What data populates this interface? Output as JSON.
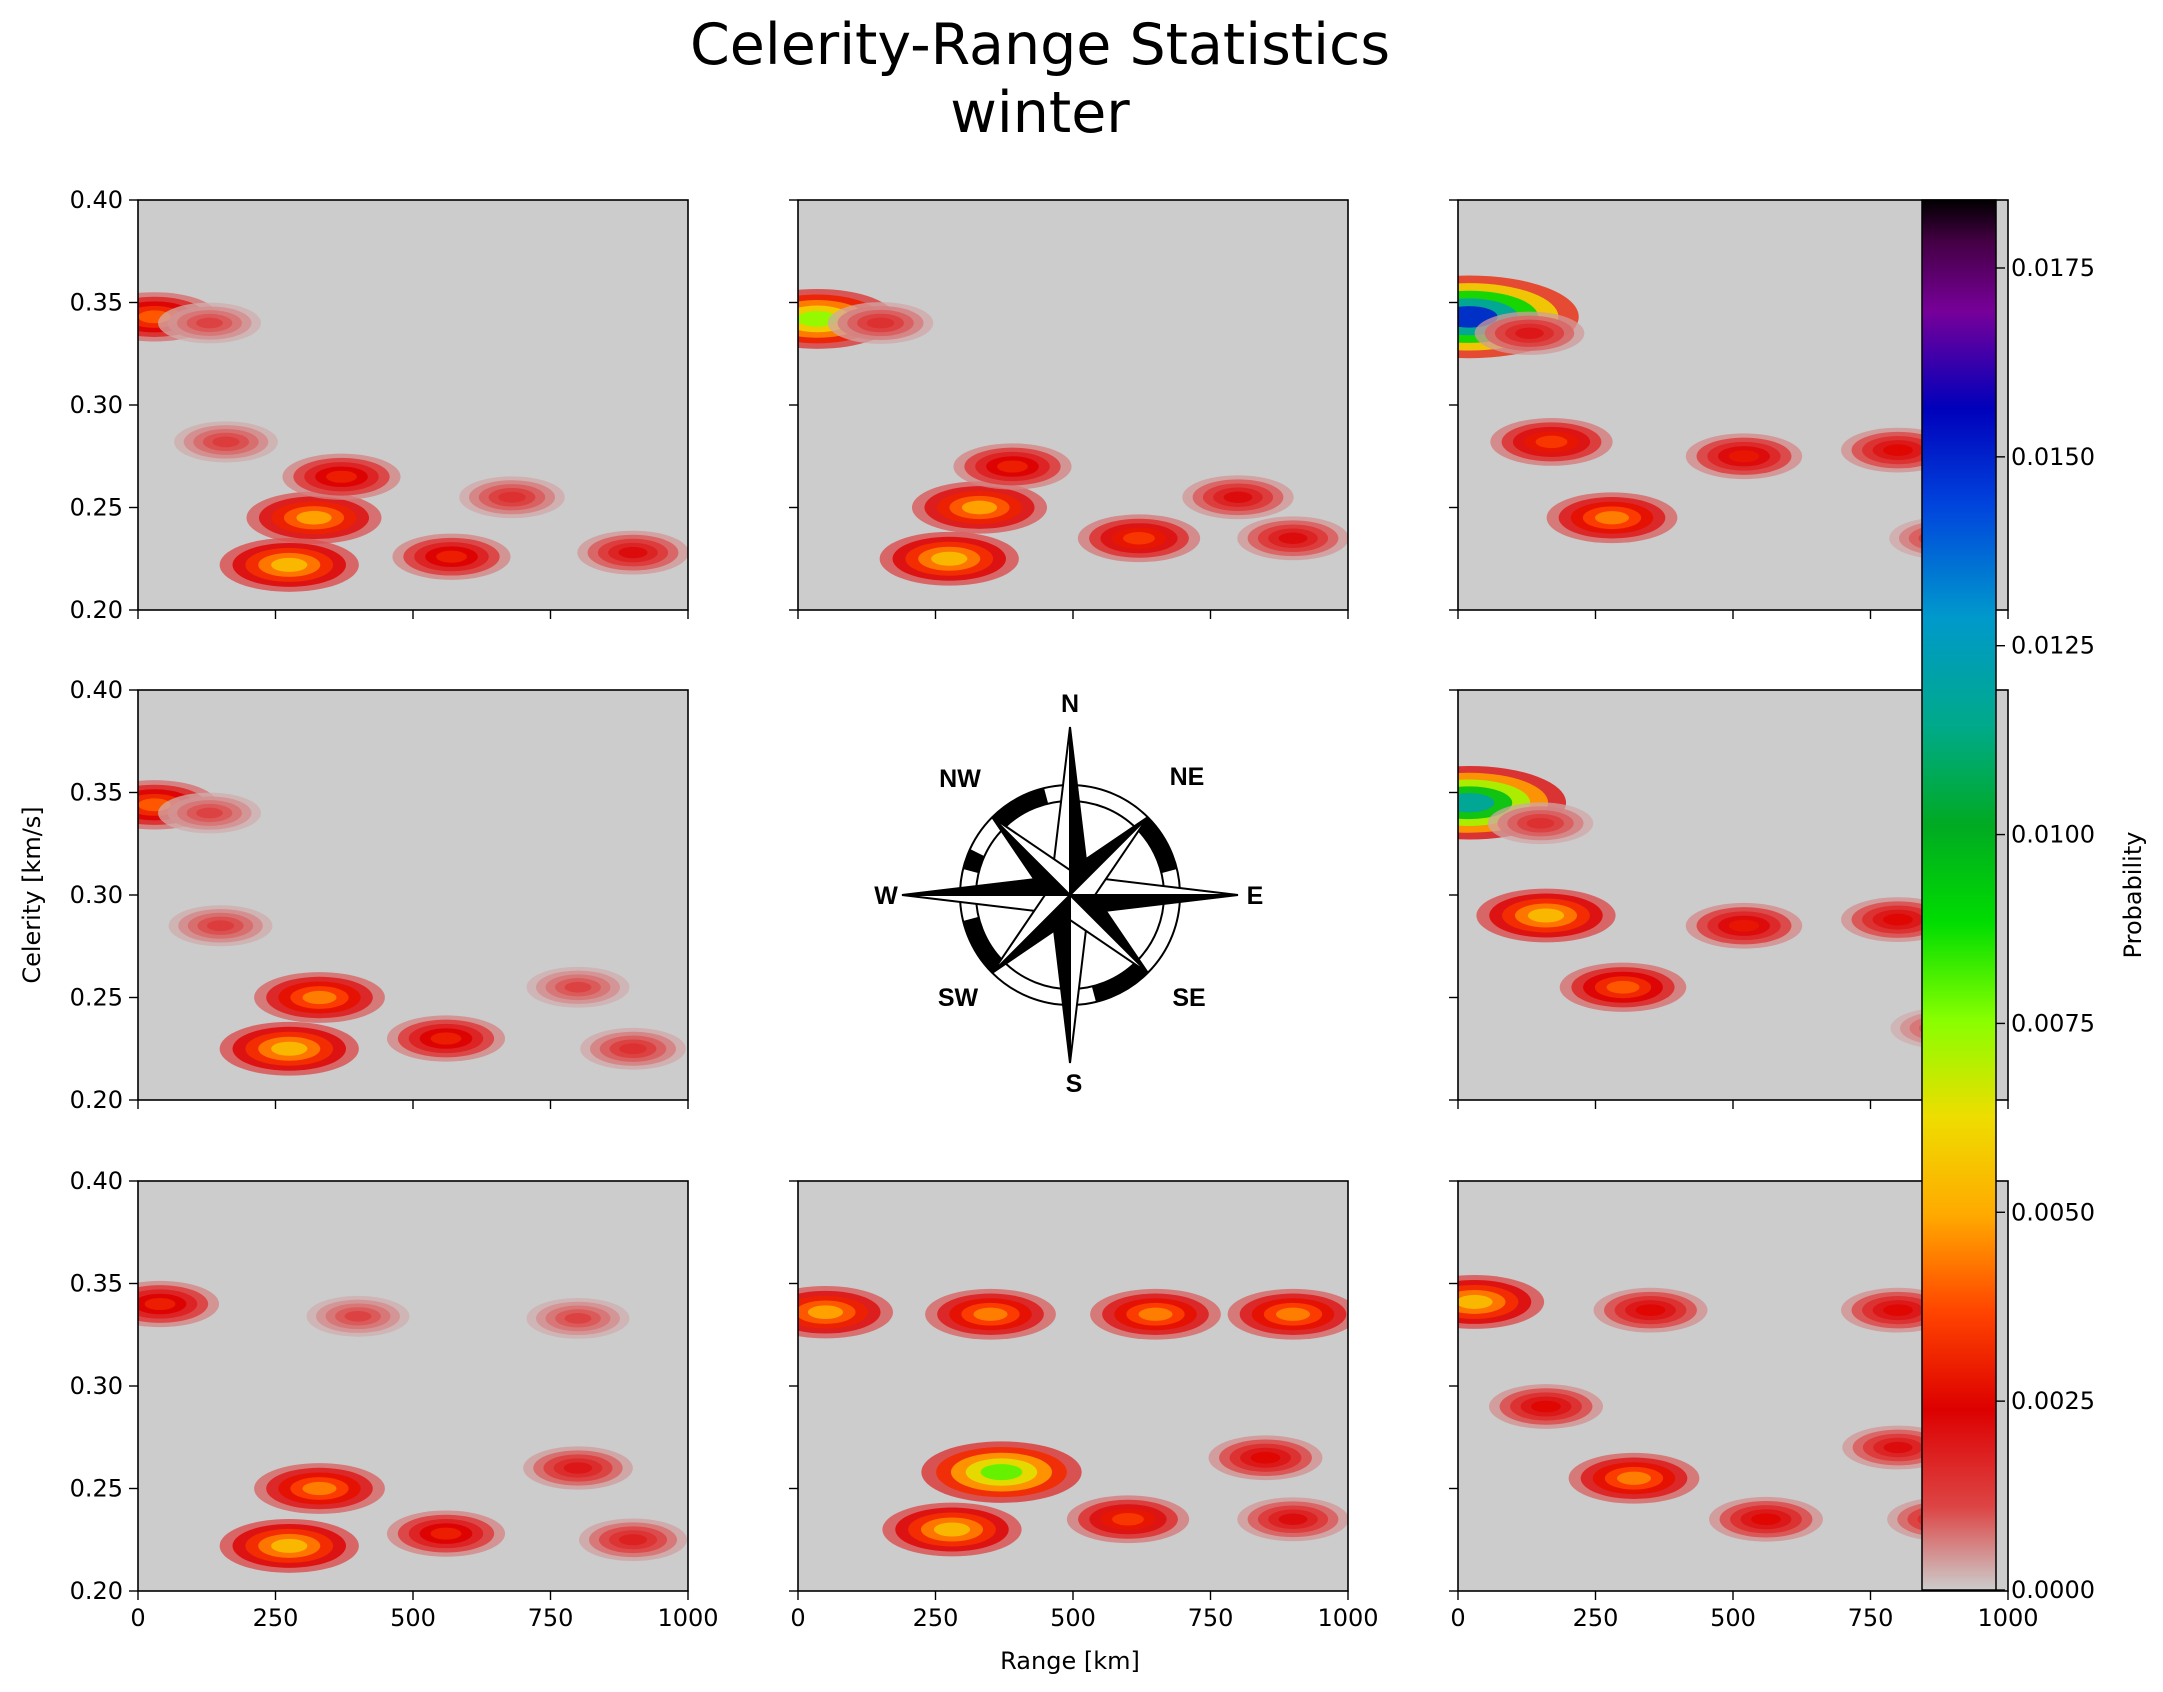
{
  "chart_data": {
    "type": "heatmap",
    "title": "Celerity-Range Statistics",
    "subtitle": "winter",
    "xlabel": "Range [km]",
    "ylabel": "Celerity [km/s]",
    "xlim": [
      0,
      1000
    ],
    "ylim": [
      0.2,
      0.4
    ],
    "xticks": [
      "0",
      "250",
      "500",
      "750",
      "1000"
    ],
    "yticks": [
      "0.20",
      "0.25",
      "0.30",
      "0.35",
      "0.40"
    ],
    "colorbar": {
      "label": "Probability",
      "range": [
        0,
        0.0184
      ],
      "ticks": [
        "0.0000",
        "0.0025",
        "0.0050",
        "0.0075",
        "0.0100",
        "0.0125",
        "0.0150",
        "0.0175"
      ],
      "tick_values": [
        0,
        0.0025,
        0.005,
        0.0075,
        0.01,
        0.0125,
        0.015,
        0.0175
      ]
    },
    "compass": {
      "labels": [
        "N",
        "NE",
        "E",
        "SE",
        "S",
        "SW",
        "W",
        "NW"
      ]
    },
    "panels": [
      {
        "direction": "NW",
        "blobs": [
          {
            "range": 30,
            "celerity": 0.343,
            "peak": 0.004
          },
          {
            "range": 130,
            "celerity": 0.34,
            "peak": 0.0012
          },
          {
            "range": 160,
            "celerity": 0.282,
            "peak": 0.0013
          },
          {
            "range": 275,
            "celerity": 0.222,
            "peak": 0.0055
          },
          {
            "range": 320,
            "celerity": 0.245,
            "peak": 0.005
          },
          {
            "range": 370,
            "celerity": 0.265,
            "peak": 0.003
          },
          {
            "range": 570,
            "celerity": 0.226,
            "peak": 0.003
          },
          {
            "range": 680,
            "celerity": 0.255,
            "peak": 0.0015
          },
          {
            "range": 900,
            "celerity": 0.228,
            "peak": 0.0022
          }
        ]
      },
      {
        "direction": "N",
        "blobs": [
          {
            "range": 35,
            "celerity": 0.342,
            "peak": 0.0075
          },
          {
            "range": 150,
            "celerity": 0.34,
            "peak": 0.0015
          },
          {
            "range": 275,
            "celerity": 0.225,
            "peak": 0.0055
          },
          {
            "range": 330,
            "celerity": 0.25,
            "peak": 0.005
          },
          {
            "range": 390,
            "celerity": 0.27,
            "peak": 0.003
          },
          {
            "range": 620,
            "celerity": 0.235,
            "peak": 0.0035
          },
          {
            "range": 800,
            "celerity": 0.255,
            "peak": 0.0022
          },
          {
            "range": 900,
            "celerity": 0.235,
            "peak": 0.0022
          }
        ]
      },
      {
        "direction": "NE",
        "blobs": [
          {
            "range": 20,
            "celerity": 0.343,
            "peak": 0.015
          },
          {
            "range": 130,
            "celerity": 0.335,
            "peak": 0.002
          },
          {
            "range": 170,
            "celerity": 0.282,
            "peak": 0.0035
          },
          {
            "range": 280,
            "celerity": 0.245,
            "peak": 0.0045
          },
          {
            "range": 520,
            "celerity": 0.275,
            "peak": 0.0028
          },
          {
            "range": 800,
            "celerity": 0.278,
            "peak": 0.0025
          },
          {
            "range": 880,
            "celerity": 0.235,
            "peak": 0.0015
          }
        ]
      },
      {
        "direction": "W",
        "blobs": [
          {
            "range": 30,
            "celerity": 0.344,
            "peak": 0.004
          },
          {
            "range": 130,
            "celerity": 0.34,
            "peak": 0.0012
          },
          {
            "range": 150,
            "celerity": 0.285,
            "peak": 0.0013
          },
          {
            "range": 275,
            "celerity": 0.225,
            "peak": 0.0055
          },
          {
            "range": 330,
            "celerity": 0.25,
            "peak": 0.0045
          },
          {
            "range": 560,
            "celerity": 0.23,
            "peak": 0.003
          },
          {
            "range": 800,
            "celerity": 0.255,
            "peak": 0.0012
          },
          {
            "range": 900,
            "celerity": 0.225,
            "peak": 0.0015
          }
        ]
      },
      {
        "direction": "E",
        "blobs": [
          {
            "range": 20,
            "celerity": 0.345,
            "peak": 0.012
          },
          {
            "range": 150,
            "celerity": 0.335,
            "peak": 0.0015
          },
          {
            "range": 160,
            "celerity": 0.29,
            "peak": 0.0055
          },
          {
            "range": 300,
            "celerity": 0.255,
            "peak": 0.004
          },
          {
            "range": 520,
            "celerity": 0.285,
            "peak": 0.0028
          },
          {
            "range": 800,
            "celerity": 0.288,
            "peak": 0.0025
          },
          {
            "range": 880,
            "celerity": 0.235,
            "peak": 0.0012
          }
        ]
      },
      {
        "direction": "SW",
        "blobs": [
          {
            "range": 40,
            "celerity": 0.34,
            "peak": 0.003
          },
          {
            "range": 400,
            "celerity": 0.334,
            "peak": 0.0012
          },
          {
            "range": 800,
            "celerity": 0.333,
            "peak": 0.0012
          },
          {
            "range": 275,
            "celerity": 0.222,
            "peak": 0.0055
          },
          {
            "range": 330,
            "celerity": 0.25,
            "peak": 0.0045
          },
          {
            "range": 560,
            "celerity": 0.228,
            "peak": 0.003
          },
          {
            "range": 800,
            "celerity": 0.26,
            "peak": 0.002
          },
          {
            "range": 900,
            "celerity": 0.225,
            "peak": 0.0018
          }
        ]
      },
      {
        "direction": "S",
        "blobs": [
          {
            "range": 50,
            "celerity": 0.336,
            "peak": 0.005
          },
          {
            "range": 350,
            "celerity": 0.335,
            "peak": 0.0045
          },
          {
            "range": 650,
            "celerity": 0.335,
            "peak": 0.0045
          },
          {
            "range": 900,
            "celerity": 0.335,
            "peak": 0.0045
          },
          {
            "range": 280,
            "celerity": 0.23,
            "peak": 0.0055
          },
          {
            "range": 370,
            "celerity": 0.258,
            "peak": 0.008
          },
          {
            "range": 600,
            "celerity": 0.235,
            "peak": 0.0035
          },
          {
            "range": 850,
            "celerity": 0.265,
            "peak": 0.0025
          },
          {
            "range": 900,
            "celerity": 0.235,
            "peak": 0.0022
          }
        ]
      },
      {
        "direction": "SE",
        "blobs": [
          {
            "range": 30,
            "celerity": 0.341,
            "peak": 0.0055
          },
          {
            "range": 350,
            "celerity": 0.337,
            "peak": 0.0025
          },
          {
            "range": 800,
            "celerity": 0.337,
            "peak": 0.0025
          },
          {
            "range": 160,
            "celerity": 0.29,
            "peak": 0.0025
          },
          {
            "range": 320,
            "celerity": 0.255,
            "peak": 0.0045
          },
          {
            "range": 560,
            "celerity": 0.235,
            "peak": 0.0025
          },
          {
            "range": 800,
            "celerity": 0.27,
            "peak": 0.0022
          },
          {
            "range": 880,
            "celerity": 0.235,
            "peak": 0.002
          }
        ]
      }
    ]
  }
}
